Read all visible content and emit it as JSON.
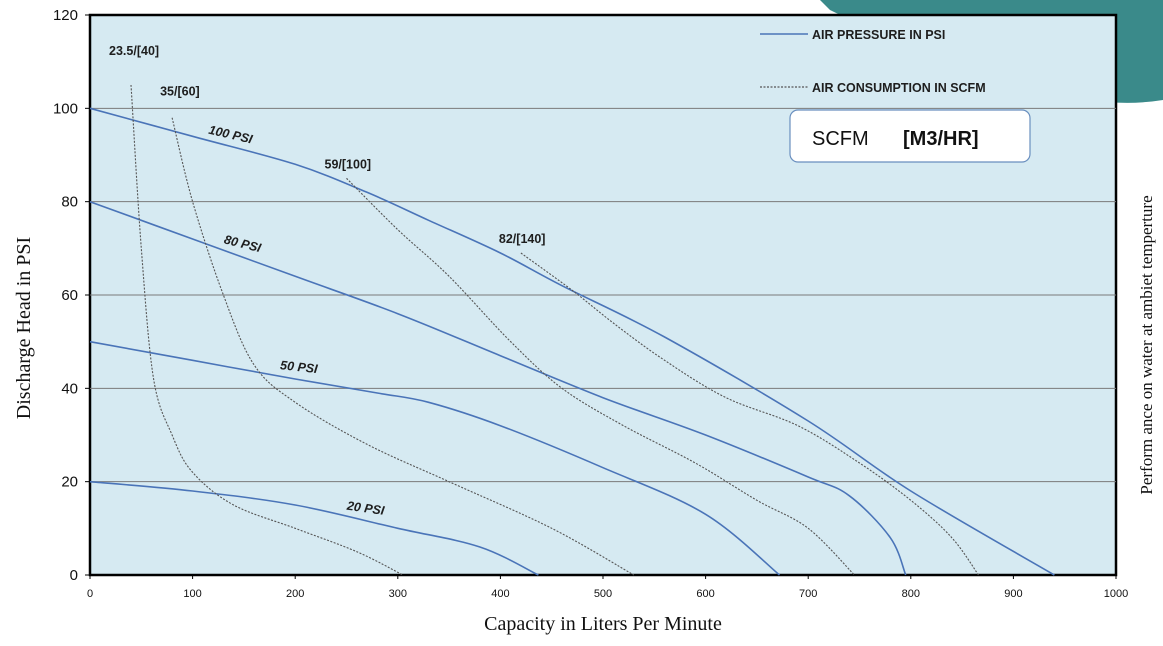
{
  "chart_data": {
    "type": "line",
    "xlabel": "Capacity in Liters Per Minute",
    "ylabel": "Discharge  Head in PSI",
    "right_label": "Perform ance on water at ambiet temperture",
    "xlim": [
      0,
      1000
    ],
    "ylim": [
      0,
      120
    ],
    "x_ticks": [
      0,
      100,
      200,
      300,
      400,
      500,
      600,
      700,
      800,
      900,
      1000
    ],
    "y_ticks": [
      0,
      20,
      40,
      60,
      80,
      100,
      120
    ],
    "grid": "horizontal",
    "plot_background": "#d6eaf2",
    "legend": {
      "placement": "top-right",
      "air_pressure_label": "AIR PRESSURE IN PSI",
      "air_consumption_label": "AIR CONSUMPTION IN SCFM"
    },
    "units_box": {
      "scfm": "SCFM",
      "m3hr": "[M3/HR]"
    },
    "series": [
      {
        "name": "100 PSI",
        "kind": "air_pressure",
        "points": [
          [
            0,
            100
          ],
          [
            100,
            94
          ],
          [
            200,
            88
          ],
          [
            270,
            82
          ],
          [
            330,
            76
          ],
          [
            400,
            69
          ],
          [
            460,
            62
          ],
          [
            560,
            51
          ],
          [
            700,
            33
          ],
          [
            800,
            18
          ],
          [
            940,
            0
          ]
        ]
      },
      {
        "name": "80 PSI",
        "kind": "air_pressure",
        "points": [
          [
            0,
            80
          ],
          [
            100,
            72
          ],
          [
            200,
            64
          ],
          [
            300,
            56
          ],
          [
            400,
            47
          ],
          [
            500,
            38
          ],
          [
            600,
            30
          ],
          [
            700,
            21
          ],
          [
            740,
            17
          ],
          [
            780,
            8
          ],
          [
            795,
            0
          ]
        ]
      },
      {
        "name": "50 PSI",
        "kind": "air_pressure",
        "points": [
          [
            0,
            50
          ],
          [
            100,
            46
          ],
          [
            200,
            42
          ],
          [
            280,
            39
          ],
          [
            330,
            37
          ],
          [
            400,
            32
          ],
          [
            500,
            23
          ],
          [
            600,
            13
          ],
          [
            672,
            0
          ]
        ]
      },
      {
        "name": "20 PSI",
        "kind": "air_pressure",
        "points": [
          [
            0,
            20
          ],
          [
            100,
            18
          ],
          [
            200,
            15
          ],
          [
            300,
            10
          ],
          [
            380,
            6
          ],
          [
            437,
            0
          ]
        ]
      }
    ],
    "consumption_series": [
      {
        "label": "23.5/[40]",
        "kind": "air_consumption",
        "points": [
          [
            40,
            105
          ],
          [
            50,
            70
          ],
          [
            62,
            42
          ],
          [
            80,
            30
          ],
          [
            100,
            22
          ],
          [
            140,
            15
          ],
          [
            200,
            10
          ],
          [
            260,
            5
          ],
          [
            305,
            0
          ]
        ]
      },
      {
        "label": "35/[60]",
        "kind": "air_consumption",
        "points": [
          [
            80,
            98
          ],
          [
            100,
            80
          ],
          [
            130,
            60
          ],
          [
            160,
            45
          ],
          [
            200,
            37
          ],
          [
            270,
            28
          ],
          [
            350,
            20
          ],
          [
            450,
            10
          ],
          [
            530,
            0
          ]
        ]
      },
      {
        "label": "59/[100]",
        "kind": "air_consumption",
        "points": [
          [
            250,
            85
          ],
          [
            300,
            74
          ],
          [
            350,
            64
          ],
          [
            410,
            50
          ],
          [
            460,
            40
          ],
          [
            520,
            32
          ],
          [
            590,
            24
          ],
          [
            650,
            16
          ],
          [
            700,
            10
          ],
          [
            745,
            0
          ]
        ]
      },
      {
        "label": "82/[140]",
        "kind": "air_consumption",
        "points": [
          [
            420,
            69
          ],
          [
            470,
            61
          ],
          [
            510,
            54
          ],
          [
            560,
            46
          ],
          [
            620,
            38
          ],
          [
            690,
            32
          ],
          [
            750,
            24
          ],
          [
            800,
            16
          ],
          [
            840,
            8
          ],
          [
            866,
            0
          ]
        ]
      }
    ],
    "colors": {
      "air_pressure": "#4a74b8",
      "air_consumption": "#555555",
      "grid": "#7a7a7a",
      "frame": "#000000",
      "accent": "#3a8a8a"
    }
  }
}
